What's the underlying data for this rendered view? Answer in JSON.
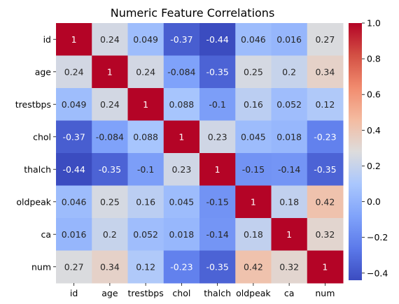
{
  "chart_data": {
    "type": "heatmap",
    "title": "Numeric Feature Correlations",
    "xlabel": "",
    "ylabel": "",
    "row_labels": [
      "id",
      "age",
      "trestbps",
      "chol",
      "thalch",
      "oldpeak",
      "ca",
      "num"
    ],
    "col_labels": [
      "id",
      "age",
      "trestbps",
      "chol",
      "thalch",
      "oldpeak",
      "ca",
      "num"
    ],
    "cell_labels": [
      [
        "1",
        "0.24",
        "0.049",
        "-0.37",
        "-0.44",
        "0.046",
        "0.016",
        "0.27"
      ],
      [
        "0.24",
        "1",
        "0.24",
        "-0.084",
        "-0.35",
        "0.25",
        "0.2",
        "0.34"
      ],
      [
        "0.049",
        "0.24",
        "1",
        "0.088",
        "-0.1",
        "0.16",
        "0.052",
        "0.12"
      ],
      [
        "-0.37",
        "-0.084",
        "0.088",
        "1",
        "0.23",
        "0.045",
        "0.018",
        "-0.23"
      ],
      [
        "-0.44",
        "-0.35",
        "-0.1",
        "0.23",
        "1",
        "-0.15",
        "-0.14",
        "-0.35"
      ],
      [
        "0.046",
        "0.25",
        "0.16",
        "0.045",
        "-0.15",
        "1",
        "0.18",
        "0.42"
      ],
      [
        "0.016",
        "0.2",
        "0.052",
        "0.018",
        "-0.14",
        "0.18",
        "1",
        "0.32"
      ],
      [
        "0.27",
        "0.34",
        "0.12",
        "-0.23",
        "-0.35",
        "0.42",
        "0.32",
        "1"
      ]
    ],
    "colorbar": {
      "colormap": "coolwarm",
      "range": [
        -0.44,
        1.0
      ],
      "ticks": [
        "−0.4",
        "−0.2",
        "0.0",
        "0.2",
        "0.4",
        "0.6",
        "0.8",
        "1.0"
      ],
      "tick_values": [
        -0.4,
        -0.2,
        0.0,
        0.2,
        0.4,
        0.6,
        0.8,
        1.0
      ]
    },
    "annotation_colors": {
      "light": "#ffffff",
      "dark": "#262626"
    }
  }
}
